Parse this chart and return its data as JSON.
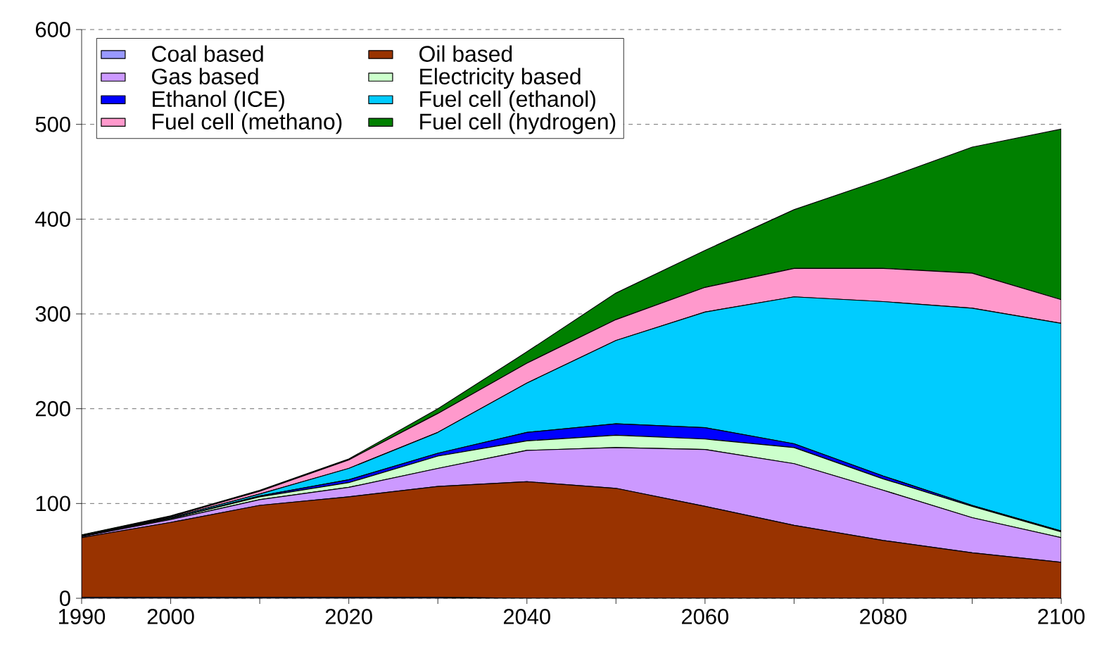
{
  "chart_data": {
    "type": "area",
    "stacked": true,
    "x": [
      1990,
      2000,
      2010,
      2020,
      2030,
      2040,
      2050,
      2060,
      2070,
      2080,
      2090,
      2100
    ],
    "xlim": [
      1990,
      2100
    ],
    "xticks": [
      1990,
      2000,
      {
        "value": 2010,
        "label": null
      },
      2020,
      {
        "value": 2030,
        "label": null
      },
      2040,
      {
        "value": 2050,
        "label": null
      },
      2060,
      {
        "value": 2070,
        "label": null
      },
      2080,
      {
        "value": 2090,
        "label": null
      },
      2100
    ],
    "ylim": [
      0,
      600
    ],
    "yticks": [
      0,
      100,
      200,
      300,
      400,
      500,
      600
    ],
    "grid": "y",
    "legend": "top left",
    "series": [
      {
        "name": "Coal based",
        "color": "#9999ff",
        "values": [
          1,
          1,
          1,
          1,
          1,
          0,
          0,
          0,
          0,
          0,
          0,
          0
        ]
      },
      {
        "name": "Oil based",
        "color": "#993300",
        "values": [
          63,
          79,
          97,
          106,
          117,
          123,
          116,
          97,
          77,
          61,
          48,
          38
        ]
      },
      {
        "name": "Gas based",
        "color": "#cc99ff",
        "values": [
          1,
          3,
          6,
          10,
          19,
          33,
          43,
          60,
          65,
          53,
          37,
          26
        ]
      },
      {
        "name": "Electricity based",
        "color": "#ccffcc",
        "values": [
          1,
          1,
          3,
          5,
          13,
          10,
          13,
          11,
          17,
          12,
          12,
          6
        ]
      },
      {
        "name": "Ethanol (ICE)",
        "color": "#0000ff",
        "values": [
          0,
          0,
          1,
          3,
          3,
          9,
          12,
          12,
          4,
          3,
          1,
          1
        ]
      },
      {
        "name": "Fuel cell (ethanol)",
        "color": "#00ccff",
        "values": [
          0,
          1,
          2,
          12,
          22,
          52,
          88,
          122,
          155,
          184,
          208,
          219
        ]
      },
      {
        "name": "Fuel cell (methano)",
        "color": "#ff99cc",
        "values": [
          0,
          1,
          3,
          9,
          20,
          21,
          22,
          26,
          30,
          35,
          37,
          25
        ]
      },
      {
        "name": "Fuel cell (hydrogen)",
        "color": "#008000",
        "values": [
          1,
          1,
          1,
          1,
          5,
          12,
          28,
          39,
          62,
          94,
          133,
          180
        ]
      }
    ]
  }
}
